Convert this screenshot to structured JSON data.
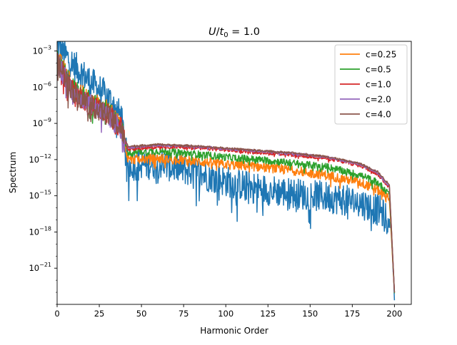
{
  "chart_data": {
    "type": "line",
    "title": "U/t₀ = 1.0",
    "title_parts": {
      "italic_1": "U",
      "slash": "/",
      "italic_2": "t",
      "subscript": "0",
      "rest": " = 1.0"
    },
    "xlabel": "Harmonic Order",
    "ylabel": "Spectrum",
    "xlim": [
      0,
      210
    ],
    "ylim_log10": [
      -24.0,
      -2.2
    ],
    "y_scale": "log",
    "x_ticks": [
      0,
      25,
      50,
      75,
      100,
      125,
      150,
      175,
      200
    ],
    "x_tick_labels": [
      "0",
      "25",
      "50",
      "75",
      "100",
      "125",
      "150",
      "175",
      "200"
    ],
    "y_ticks_log10": [
      -3,
      -6,
      -9,
      -12,
      -15,
      -18,
      -21
    ],
    "y_tick_labels": [
      {
        "base": "10",
        "exp": "−3"
      },
      {
        "base": "10",
        "exp": "−6"
      },
      {
        "base": "10",
        "exp": "−9"
      },
      {
        "base": "10",
        "exp": "−12"
      },
      {
        "base": "10",
        "exp": "−15"
      },
      {
        "base": "10",
        "exp": "−18"
      },
      {
        "base": "10",
        "exp": "−21"
      }
    ],
    "grid": false,
    "legend_position": "top-right",
    "series": [
      {
        "name": "",
        "color": "#1f77b4",
        "in_legend": false,
        "profile": [
          [
            0,
            -2.6
          ],
          [
            10,
            -4.2
          ],
          [
            20,
            -5.6
          ],
          [
            30,
            -6.8
          ],
          [
            38,
            -8.5
          ],
          [
            42,
            -12.5
          ],
          [
            60,
            -12.3
          ],
          [
            80,
            -13.0
          ],
          [
            100,
            -13.8
          ],
          [
            120,
            -14.4
          ],
          [
            140,
            -14.8
          ],
          [
            160,
            -15.1
          ],
          [
            180,
            -15.6
          ],
          [
            192,
            -16.3
          ],
          [
            198,
            -17.5
          ],
          [
            200,
            -23.0
          ]
        ],
        "noise": 1.3
      },
      {
        "name": "c=0.25",
        "color": "#ff7f0e",
        "in_legend": true,
        "profile": [
          [
            0,
            -3.6
          ],
          [
            10,
            -6.2
          ],
          [
            20,
            -7.2
          ],
          [
            30,
            -8.0
          ],
          [
            38,
            -9.2
          ],
          [
            42,
            -12.0
          ],
          [
            60,
            -11.9
          ],
          [
            80,
            -12.1
          ],
          [
            100,
            -12.4
          ],
          [
            120,
            -12.6
          ],
          [
            140,
            -12.9
          ],
          [
            160,
            -13.3
          ],
          [
            180,
            -13.9
          ],
          [
            190,
            -14.5
          ],
          [
            197,
            -15.3
          ],
          [
            200,
            -23.0
          ]
        ],
        "noise": 0.4
      },
      {
        "name": "c=0.5",
        "color": "#2ca02c",
        "in_legend": true,
        "profile": [
          [
            0,
            -3.8
          ],
          [
            10,
            -6.3
          ],
          [
            20,
            -7.3
          ],
          [
            30,
            -8.1
          ],
          [
            38,
            -9.3
          ],
          [
            42,
            -11.4
          ],
          [
            60,
            -11.3
          ],
          [
            80,
            -11.5
          ],
          [
            100,
            -11.8
          ],
          [
            120,
            -12.0
          ],
          [
            140,
            -12.3
          ],
          [
            160,
            -12.6
          ],
          [
            180,
            -13.3
          ],
          [
            190,
            -13.9
          ],
          [
            197,
            -14.8
          ],
          [
            200,
            -23.0
          ]
        ],
        "noise": 0.3
      },
      {
        "name": "c=1.0",
        "color": "#d62728",
        "in_legend": true,
        "profile": [
          [
            0,
            -4.0
          ],
          [
            10,
            -6.4
          ],
          [
            20,
            -7.4
          ],
          [
            30,
            -8.2
          ],
          [
            38,
            -9.4
          ],
          [
            42,
            -11.2
          ],
          [
            60,
            -10.9
          ],
          [
            80,
            -11.0
          ],
          [
            100,
            -11.2
          ],
          [
            120,
            -11.4
          ],
          [
            140,
            -11.6
          ],
          [
            160,
            -11.9
          ],
          [
            180,
            -12.5
          ],
          [
            190,
            -13.2
          ],
          [
            197,
            -14.3
          ],
          [
            200,
            -23.0
          ]
        ],
        "noise": 0.15
      },
      {
        "name": "c=2.0",
        "color": "#9467bd",
        "in_legend": true,
        "profile": [
          [
            0,
            -4.0
          ],
          [
            10,
            -6.5
          ],
          [
            20,
            -7.5
          ],
          [
            30,
            -8.3
          ],
          [
            38,
            -9.5
          ],
          [
            42,
            -11.0
          ],
          [
            60,
            -10.8
          ],
          [
            80,
            -10.9
          ],
          [
            100,
            -11.1
          ],
          [
            120,
            -11.3
          ],
          [
            140,
            -11.5
          ],
          [
            160,
            -11.8
          ],
          [
            180,
            -12.4
          ],
          [
            190,
            -13.1
          ],
          [
            197,
            -14.2
          ],
          [
            200,
            -23.0
          ]
        ],
        "noise": 0.1
      },
      {
        "name": "c=4.0",
        "color": "#8c564b",
        "in_legend": true,
        "profile": [
          [
            0,
            -4.0
          ],
          [
            10,
            -6.5
          ],
          [
            20,
            -7.5
          ],
          [
            30,
            -8.3
          ],
          [
            38,
            -9.5
          ],
          [
            42,
            -10.9
          ],
          [
            60,
            -10.75
          ],
          [
            80,
            -10.85
          ],
          [
            100,
            -11.05
          ],
          [
            120,
            -11.25
          ],
          [
            140,
            -11.45
          ],
          [
            160,
            -11.75
          ],
          [
            180,
            -12.35
          ],
          [
            190,
            -13.0
          ],
          [
            197,
            -14.1
          ],
          [
            200,
            -23.0
          ]
        ],
        "noise": 0.08
      }
    ]
  }
}
